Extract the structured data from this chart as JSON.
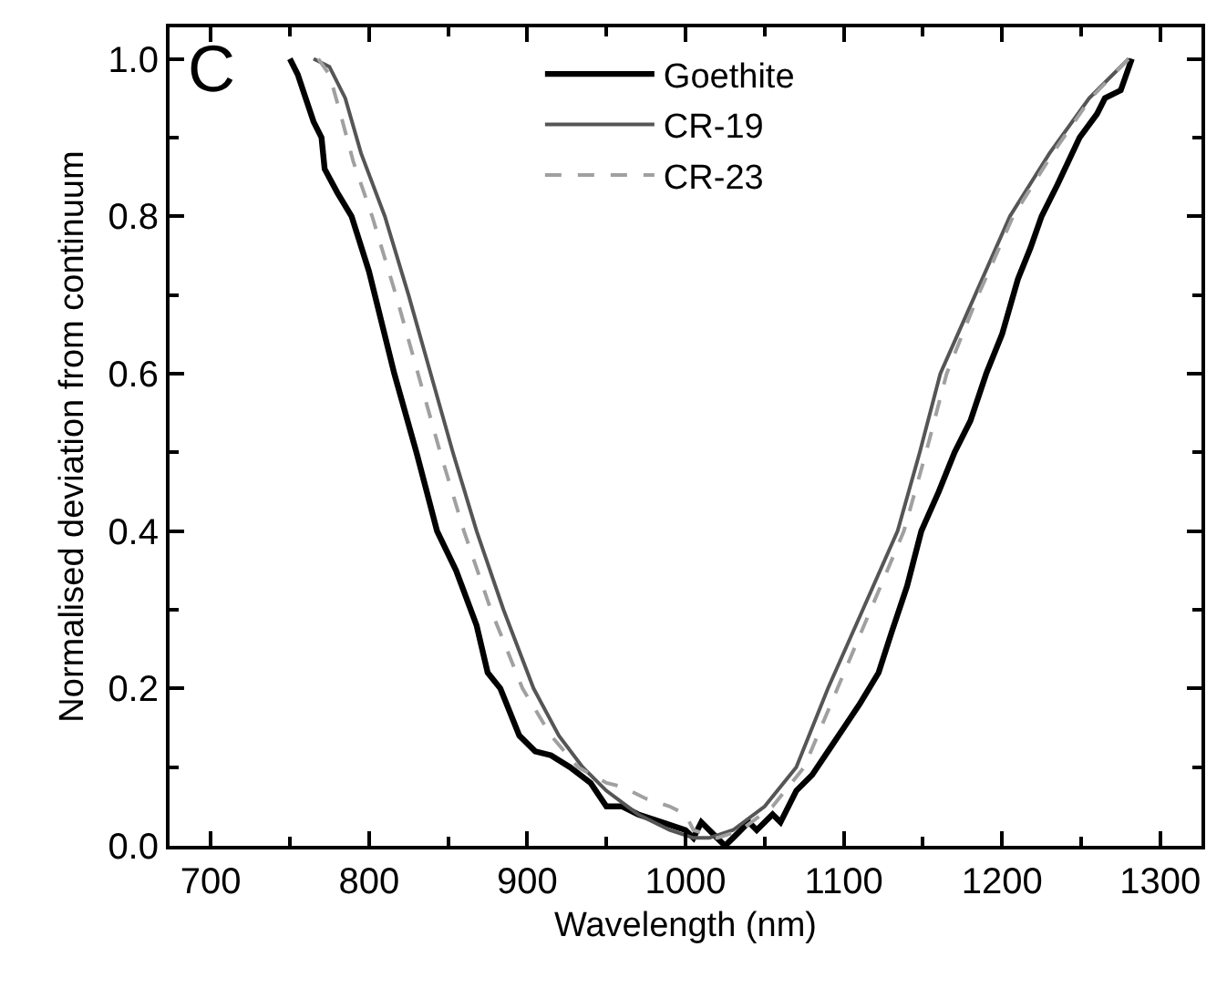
{
  "chart_data": {
    "type": "line",
    "xlabel": "Wavelength (nm)",
    "ylabel": "Normalised deviation from continuum",
    "annotations": [
      "C"
    ],
    "xlim": [
      674,
      1326
    ],
    "ylim": [
      0,
      1.04
    ],
    "xticks": [
      700,
      {
        "value": 750,
        "label": null
      },
      800,
      {
        "value": 850,
        "label": null
      },
      900,
      {
        "value": 950,
        "label": null
      },
      1000,
      {
        "value": 1050,
        "label": null
      },
      1100,
      {
        "value": 1150,
        "label": null
      },
      1200,
      {
        "value": 1250,
        "label": null
      },
      1300
    ],
    "yticks": [
      {
        "value": 0,
        "label": "0.0"
      },
      {
        "value": 0.1,
        "label": null
      },
      0.2,
      {
        "value": 0.3,
        "label": null
      },
      0.4,
      {
        "value": 0.5,
        "label": null
      },
      0.6,
      {
        "value": 0.7,
        "label": null
      },
      0.8,
      {
        "value": 0.9,
        "label": null
      },
      {
        "value": 1,
        "label": "1.0"
      }
    ],
    "legend": "top",
    "marker": "none",
    "series": [
      {
        "name": "Goethite",
        "color": "#000000",
        "line_style": "solid",
        "x": [
          750,
          755,
          760,
          765,
          770,
          772,
          780,
          789,
          800,
          816,
          830,
          843,
          855,
          868,
          875,
          883,
          895,
          905,
          915,
          927,
          940,
          950,
          960,
          970,
          985,
          1000,
          1005,
          1010,
          1020,
          1025,
          1030,
          1040,
          1045,
          1055,
          1060,
          1070,
          1080,
          1090,
          1100,
          1110,
          1122,
          1130,
          1140,
          1149,
          1160,
          1170,
          1180,
          1190,
          1200,
          1210,
          1218,
          1225,
          1235,
          1249,
          1260,
          1265,
          1275,
          1282
        ],
        "values": [
          1.0,
          0.98,
          0.95,
          0.92,
          0.9,
          0.86,
          0.83,
          0.8,
          0.73,
          0.6,
          0.5,
          0.4,
          0.35,
          0.28,
          0.22,
          0.2,
          0.14,
          0.12,
          0.115,
          0.1,
          0.08,
          0.05,
          0.05,
          0.04,
          0.03,
          0.02,
          0.01,
          0.03,
          0.01,
          0.0,
          0.01,
          0.03,
          0.02,
          0.04,
          0.03,
          0.07,
          0.09,
          0.12,
          0.15,
          0.18,
          0.22,
          0.27,
          0.33,
          0.4,
          0.45,
          0.5,
          0.54,
          0.6,
          0.65,
          0.72,
          0.76,
          0.8,
          0.84,
          0.9,
          0.93,
          0.95,
          0.96,
          1.0
        ]
      },
      {
        "name": "CR-19",
        "color": "#555555",
        "line_style": "solid",
        "x": [
          765,
          775,
          785,
          795,
          810,
          825,
          839,
          853,
          868,
          885,
          904,
          920,
          935,
          950,
          970,
          990,
          1005,
          1015,
          1030,
          1050,
          1070,
          1090,
          1112,
          1134,
          1148,
          1161,
          1183,
          1205,
          1230,
          1255,
          1280
        ],
        "values": [
          1.0,
          0.99,
          0.95,
          0.88,
          0.8,
          0.7,
          0.6,
          0.5,
          0.4,
          0.3,
          0.2,
          0.14,
          0.1,
          0.07,
          0.04,
          0.02,
          0.01,
          0.01,
          0.02,
          0.05,
          0.1,
          0.2,
          0.3,
          0.4,
          0.5,
          0.6,
          0.7,
          0.8,
          0.88,
          0.95,
          1.0
        ]
      },
      {
        "name": "CR-23",
        "color": "#a0a0a0",
        "line_style": "dashed",
        "x": [
          768,
          775,
          782,
          790,
          802,
          817,
          831,
          845,
          860,
          877,
          897,
          915,
          932,
          950,
          960,
          975,
          990,
          1000,
          1005,
          1020,
          1035,
          1055,
          1075,
          1096,
          1117,
          1138,
          1152,
          1165,
          1185,
          1207,
          1232,
          1256,
          1280
        ],
        "values": [
          1.0,
          0.98,
          0.93,
          0.87,
          0.8,
          0.7,
          0.6,
          0.5,
          0.4,
          0.3,
          0.2,
          0.14,
          0.1,
          0.08,
          0.075,
          0.06,
          0.05,
          0.04,
          0.02,
          0.01,
          0.02,
          0.05,
          0.1,
          0.2,
          0.3,
          0.4,
          0.5,
          0.6,
          0.7,
          0.8,
          0.88,
          0.95,
          1.0
        ]
      }
    ]
  }
}
